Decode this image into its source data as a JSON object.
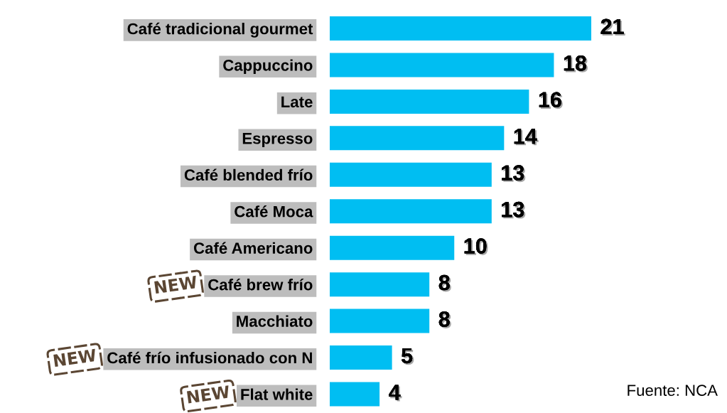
{
  "chart_data": {
    "type": "bar",
    "orientation": "horizontal",
    "categories": [
      "Café tradicional gourmet",
      "Cappuccino",
      "Late",
      "Espresso",
      "Café blended frío",
      "Café Moca",
      "Café Americano",
      "Café brew frío",
      "Macchiato",
      "Café frío infusionado con N",
      "Flat white"
    ],
    "values": [
      21,
      18,
      16,
      14,
      13,
      13,
      10,
      8,
      8,
      5,
      4
    ],
    "color": "#00bef2",
    "data_labels": true,
    "tick_labels": "y",
    "annotations": [
      "NEW",
      "NEW",
      "NEW",
      "Fuente: NCA"
    ]
  }
}
